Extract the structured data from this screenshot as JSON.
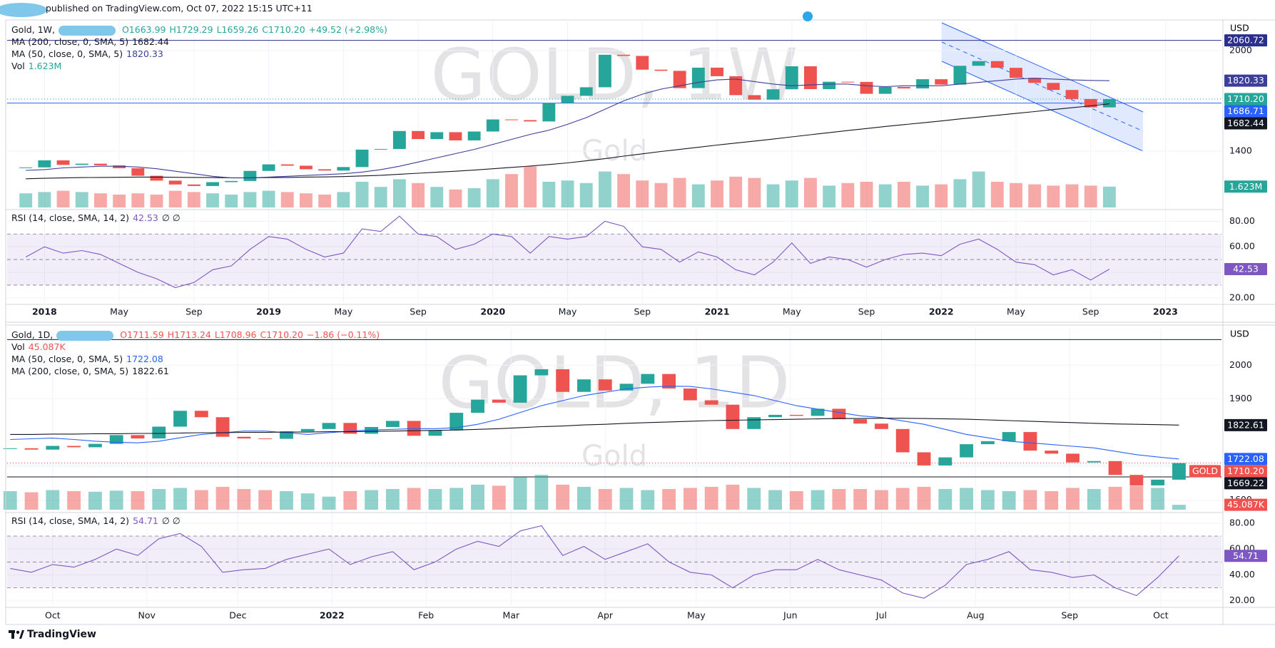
{
  "header": {
    "published": "published on TradingView.com, Oct 07, 2022 15:15 UTC+11"
  },
  "footer": "TradingView",
  "chart_data": [
    {
      "type": "candlestick",
      "title": "Gold, 1W,",
      "watermark": "GOLD, 1W",
      "watermark_subtitle": "Gold",
      "currency": "USD",
      "ohlc": [
        "O1663.99",
        "H1729.29",
        "L1659.26",
        "C1710.20",
        "+49.52 (+2.98%)"
      ],
      "ohlc_color": "#26a69a",
      "x": [
        "2017-12",
        "2018-01",
        "2018-02",
        "2018-03",
        "2018-04",
        "2018-05",
        "2018-06",
        "2018-07",
        "2018-08",
        "2018-09",
        "2018-10",
        "2018-11",
        "2018-12",
        "2019-01",
        "2019-02",
        "2019-03",
        "2019-04",
        "2019-05",
        "2019-06",
        "2019-07",
        "2019-08",
        "2019-09",
        "2019-10",
        "2019-11",
        "2019-12",
        "2020-01",
        "2020-02",
        "2020-03",
        "2020-04",
        "2020-05",
        "2020-06",
        "2020-07",
        "2020-08",
        "2020-09",
        "2020-10",
        "2020-11",
        "2020-12",
        "2021-01",
        "2021-02",
        "2021-03",
        "2021-04",
        "2021-05",
        "2021-06",
        "2021-07",
        "2021-08",
        "2021-09",
        "2021-10",
        "2021-11",
        "2021-12",
        "2022-01",
        "2022-02",
        "2022-03",
        "2022-04",
        "2022-05",
        "2022-06",
        "2022-07",
        "2022-08",
        "2022-09",
        "2022-10"
      ],
      "xlim": [
        "2017-11",
        "2023-04"
      ],
      "xticks": [
        {
          "value": "2018-01",
          "label": "2018"
        },
        {
          "value": "2018-05",
          "label": "May"
        },
        {
          "value": "2018-09",
          "label": "Sep"
        },
        {
          "value": "2019-01",
          "label": "2019"
        },
        {
          "value": "2019-05",
          "label": "May"
        },
        {
          "value": "2019-09",
          "label": "Sep"
        },
        {
          "value": "2020-01",
          "label": "2020"
        },
        {
          "value": "2020-05",
          "label": "May"
        },
        {
          "value": "2020-09",
          "label": "Sep"
        },
        {
          "value": "2021-01",
          "label": "2021"
        },
        {
          "value": "2021-05",
          "label": "May"
        },
        {
          "value": "2021-09",
          "label": "Sep"
        },
        {
          "value": "2022-01",
          "label": "2022"
        },
        {
          "value": "2022-05",
          "label": "May"
        },
        {
          "value": "2022-09",
          "label": "Sep"
        },
        {
          "value": "2023-01",
          "label": "2023"
        }
      ],
      "ylim": [
        1064,
        2157
      ],
      "yticks": [
        1400,
        2000
      ],
      "vlim": [
        0,
        4
      ],
      "rsi_ylim": [
        16,
        88
      ],
      "rsi_yticks": [
        {
          "value": 20,
          "label": "20.00"
        },
        {
          "value": 40,
          "label": "40.00"
        },
        {
          "value": 60,
          "label": "60.00"
        },
        {
          "value": 80,
          "label": "80.00"
        }
      ],
      "rsi_levels": [
        30,
        50,
        70
      ],
      "series": [
        {
          "name": "Gold",
          "style": "candles",
          "pane": "price",
          "up_color": "#26a69a",
          "down_color": "#ef5350",
          "tag_color": "#26a69a",
          "last_label": "1710.20",
          "values": [
            1303,
            1345,
            1318,
            1325,
            1315,
            1298,
            1253,
            1224,
            1201,
            1192,
            1215,
            1222,
            1282,
            1321,
            1313,
            1292,
            1284,
            1305,
            1409,
            1413,
            1520,
            1472,
            1513,
            1464,
            1517,
            1589,
            1585,
            1577,
            1687,
            1730,
            1781,
            1975,
            1968,
            1886,
            1879,
            1776,
            1898,
            1847,
            1734,
            1707,
            1769,
            1906,
            1770,
            1814,
            1813,
            1742,
            1783,
            1774,
            1829,
            1797,
            1909,
            1937,
            1897,
            1837,
            1807,
            1765,
            1711,
            1661,
            1710.2
          ]
        },
        {
          "name": "MA (200, close, 0, SMA, 5)",
          "style": "line",
          "pane": "price",
          "color": "#131722",
          "values": [
            1235,
            1238,
            1240,
            1242,
            1243,
            1244,
            1245,
            1245,
            1244,
            1243,
            1242,
            1241,
            1241,
            1242,
            1243,
            1245,
            1246,
            1248,
            1252,
            1256,
            1262,
            1268,
            1274,
            1280,
            1287,
            1295,
            1303,
            1311,
            1320,
            1330,
            1342,
            1355,
            1370,
            1384,
            1398,
            1410,
            1423,
            1436,
            1448,
            1460,
            1472,
            1485,
            1498,
            1510,
            1523,
            1535,
            1547,
            1558,
            1569,
            1580,
            1592,
            1603,
            1614,
            1625,
            1636,
            1648,
            1659,
            1670,
            1682.44
          ]
        },
        {
          "name": "MA (50, close, 0, SMA, 5)",
          "style": "line",
          "pane": "price",
          "color": "#3c3f9a",
          "values": [
            1285,
            1290,
            1300,
            1305,
            1310,
            1310,
            1305,
            1295,
            1280,
            1265,
            1250,
            1240,
            1240,
            1245,
            1250,
            1255,
            1260,
            1265,
            1275,
            1290,
            1310,
            1335,
            1360,
            1385,
            1410,
            1440,
            1470,
            1500,
            1525,
            1560,
            1600,
            1650,
            1700,
            1740,
            1770,
            1790,
            1810,
            1825,
            1830,
            1815,
            1800,
            1790,
            1795,
            1800,
            1800,
            1790,
            1785,
            1790,
            1790,
            1790,
            1800,
            1810,
            1820,
            1830,
            1835,
            1830,
            1825,
            1822,
            1820.33
          ]
        },
        {
          "name": "Vol",
          "style": "bars",
          "pane": "volume",
          "color": "#26a69a",
          "last_label": "1.623M",
          "values": [
            1.1,
            1.2,
            1.3,
            1.2,
            1.1,
            1.0,
            1.1,
            1.0,
            1.3,
            1.2,
            1.1,
            1.0,
            1.2,
            1.3,
            1.2,
            1.1,
            1.0,
            1.2,
            2.0,
            1.6,
            2.2,
            1.9,
            1.6,
            1.4,
            1.5,
            2.2,
            2.6,
            3.2,
            2.0,
            2.1,
            1.9,
            2.8,
            2.6,
            2.1,
            1.9,
            2.3,
            1.8,
            2.1,
            2.4,
            2.3,
            1.8,
            2.1,
            2.3,
            1.7,
            1.9,
            2.0,
            1.8,
            2.0,
            1.7,
            1.8,
            2.2,
            2.8,
            2.0,
            1.9,
            1.8,
            1.7,
            1.8,
            1.7,
            1.623
          ]
        },
        {
          "name": "RSI (14, close, SMA, 14, 2)",
          "style": "line",
          "pane": "rsi",
          "color": "#7e57c2",
          "extra": "∅ ∅",
          "values": [
            52,
            60,
            55,
            57,
            54,
            47,
            40,
            35,
            28,
            32,
            42,
            45,
            58,
            68,
            66,
            58,
            52,
            55,
            74,
            72,
            84,
            70,
            68,
            58,
            62,
            70,
            68,
            55,
            68,
            66,
            68,
            80,
            76,
            60,
            58,
            48,
            56,
            52,
            42,
            38,
            48,
            63,
            47,
            52,
            50,
            44,
            50,
            54,
            55,
            53,
            62,
            66,
            58,
            48,
            46,
            38,
            42,
            34,
            42.53
          ]
        }
      ],
      "hlines": [
        {
          "value": 2060.72,
          "color": "#2a2e8c"
        },
        {
          "value": 1686.71,
          "color": "#2962ff"
        }
      ]
    },
    {
      "type": "candlestick",
      "title": "Gold, 1D,",
      "watermark": "GOLD, 1D",
      "watermark_subtitle": "Gold",
      "currency": "USD",
      "ohlc": [
        "O1711.59",
        "H1713.24",
        "L1708.96",
        "C1710.20",
        "−1.86 (−0.11%)"
      ],
      "ohlc_color": "#ef5350",
      "symbol_tag": "GOLD",
      "x": [
        "2021-09-17",
        "2021-09-24",
        "2021-10-01",
        "2021-10-08",
        "2021-10-15",
        "2021-10-22",
        "2021-10-29",
        "2021-11-05",
        "2021-11-12",
        "2021-11-19",
        "2021-11-26",
        "2021-12-03",
        "2021-12-10",
        "2021-12-17",
        "2021-12-24",
        "2021-12-31",
        "2022-01-07",
        "2022-01-14",
        "2022-01-21",
        "2022-01-28",
        "2022-02-04",
        "2022-02-11",
        "2022-02-18",
        "2022-02-25",
        "2022-03-04",
        "2022-03-11",
        "2022-03-18",
        "2022-03-25",
        "2022-04-01",
        "2022-04-08",
        "2022-04-15",
        "2022-04-22",
        "2022-04-29",
        "2022-05-06",
        "2022-05-13",
        "2022-05-20",
        "2022-05-27",
        "2022-06-03",
        "2022-06-10",
        "2022-06-17",
        "2022-06-24",
        "2022-07-01",
        "2022-07-08",
        "2022-07-15",
        "2022-07-22",
        "2022-07-29",
        "2022-08-05",
        "2022-08-12",
        "2022-08-19",
        "2022-08-26",
        "2022-09-02",
        "2022-09-09",
        "2022-09-16",
        "2022-09-23",
        "2022-09-30",
        "2022-10-07"
      ],
      "xlim": [
        "2021-09-16",
        "2022-10-21"
      ],
      "xticks": [
        {
          "value": "2021-10-01",
          "label": "Oct"
        },
        {
          "value": "2021-11-01",
          "label": "Nov"
        },
        {
          "value": "2021-12-01",
          "label": "Dec"
        },
        {
          "value": "2022-01-01",
          "label": "2022"
        },
        {
          "value": "2022-02-01",
          "label": "Feb"
        },
        {
          "value": "2022-03-01",
          "label": "Mar"
        },
        {
          "value": "2022-04-01",
          "label": "Apr"
        },
        {
          "value": "2022-05-01",
          "label": "May"
        },
        {
          "value": "2022-06-01",
          "label": "Jun"
        },
        {
          "value": "2022-07-01",
          "label": "Jul"
        },
        {
          "value": "2022-08-01",
          "label": "Aug"
        },
        {
          "value": "2022-09-01",
          "label": "Sep"
        },
        {
          "value": "2022-10-01",
          "label": "Oct"
        }
      ],
      "ylim": [
        1572,
        2102
      ],
      "yticks": [
        1600,
        1900,
        2000
      ],
      "vlim": [
        0,
        360
      ],
      "rsi_ylim": [
        16,
        86
      ],
      "rsi_yticks": [
        {
          "value": 20,
          "label": "20.00"
        },
        {
          "value": 40,
          "label": "40.00"
        },
        {
          "value": 60,
          "label": "60.00"
        },
        {
          "value": 80,
          "label": "80.00"
        }
      ],
      "rsi_levels": [
        30,
        50,
        70
      ],
      "series": [
        {
          "name": "Gold",
          "style": "candles",
          "pane": "price",
          "up_color": "#26a69a",
          "down_color": "#ef5350",
          "tag_color": "#ef5350",
          "last_label": "1710.20",
          "values": [
            1754,
            1750,
            1761,
            1757,
            1767,
            1793,
            1783,
            1818,
            1865,
            1846,
            1788,
            1783,
            1782,
            1804,
            1811,
            1829,
            1797,
            1817,
            1835,
            1791,
            1807,
            1859,
            1898,
            1889,
            1970,
            1988,
            1921,
            1958,
            1925,
            1945,
            1974,
            1931,
            1896,
            1883,
            1811,
            1846,
            1853,
            1850,
            1871,
            1840,
            1827,
            1811,
            1742,
            1703,
            1727,
            1766,
            1775,
            1802,
            1747,
            1738,
            1712,
            1716,
            1675,
            1644,
            1661,
            1710.2
          ]
        },
        {
          "name": "Vol",
          "style": "bars",
          "pane": "volume",
          "color": "#ef5350",
          "last_label": "45.087K",
          "values": [
            170,
            160,
            180,
            170,
            165,
            175,
            170,
            190,
            200,
            180,
            210,
            190,
            180,
            170,
            150,
            120,
            170,
            180,
            190,
            200,
            190,
            200,
            230,
            220,
            300,
            320,
            230,
            210,
            190,
            200,
            180,
            190,
            200,
            210,
            230,
            200,
            180,
            170,
            180,
            190,
            190,
            180,
            200,
            210,
            190,
            200,
            180,
            170,
            180,
            170,
            200,
            190,
            210,
            220,
            200,
            45.087
          ]
        },
        {
          "name": "MA (50, close, 0, SMA, 5)",
          "style": "line",
          "pane": "price",
          "color": "#2962ff",
          "values": [
            1780,
            1782,
            1784,
            1780,
            1775,
            1772,
            1770,
            1775,
            1785,
            1795,
            1800,
            1805,
            1805,
            1800,
            1795,
            1800,
            1805,
            1808,
            1810,
            1812,
            1812,
            1815,
            1825,
            1840,
            1860,
            1880,
            1895,
            1910,
            1920,
            1930,
            1935,
            1938,
            1937,
            1930,
            1920,
            1910,
            1895,
            1880,
            1870,
            1860,
            1850,
            1845,
            1835,
            1825,
            1810,
            1795,
            1785,
            1775,
            1770,
            1765,
            1760,
            1755,
            1745,
            1735,
            1728,
            1722.08
          ]
        },
        {
          "name": "MA (200, close, 0, SMA, 5)",
          "style": "line",
          "pane": "price",
          "color": "#131722",
          "values": [
            1795,
            1795,
            1796,
            1796,
            1797,
            1797,
            1798,
            1798,
            1799,
            1800,
            1800,
            1801,
            1801,
            1802,
            1802,
            1803,
            1803,
            1804,
            1805,
            1806,
            1807,
            1808,
            1810,
            1812,
            1815,
            1818,
            1820,
            1823,
            1825,
            1828,
            1830,
            1832,
            1834,
            1836,
            1837,
            1838,
            1839,
            1840,
            1841,
            1842,
            1842,
            1843,
            1843,
            1842,
            1841,
            1840,
            1838,
            1836,
            1834,
            1832,
            1830,
            1828,
            1826,
            1825,
            1824,
            1822.61
          ]
        },
        {
          "name": "RSI (14, close, SMA, 14, 2)",
          "style": "line",
          "pane": "rsi",
          "color": "#7e57c2",
          "extra": "∅ ∅",
          "values": [
            45,
            42,
            48,
            46,
            52,
            60,
            55,
            68,
            72,
            62,
            42,
            44,
            45,
            52,
            56,
            60,
            48,
            54,
            58,
            44,
            50,
            60,
            66,
            62,
            74,
            78,
            55,
            62,
            52,
            58,
            64,
            50,
            42,
            40,
            30,
            40,
            44,
            44,
            52,
            44,
            40,
            36,
            26,
            22,
            32,
            48,
            52,
            58,
            44,
            42,
            38,
            40,
            30,
            24,
            38,
            54.71
          ]
        }
      ],
      "hlines": [
        {
          "value": 2076,
          "color": "#131722",
          "tag": false
        },
        {
          "value": 1669.22,
          "color": "#131722"
        }
      ]
    }
  ]
}
